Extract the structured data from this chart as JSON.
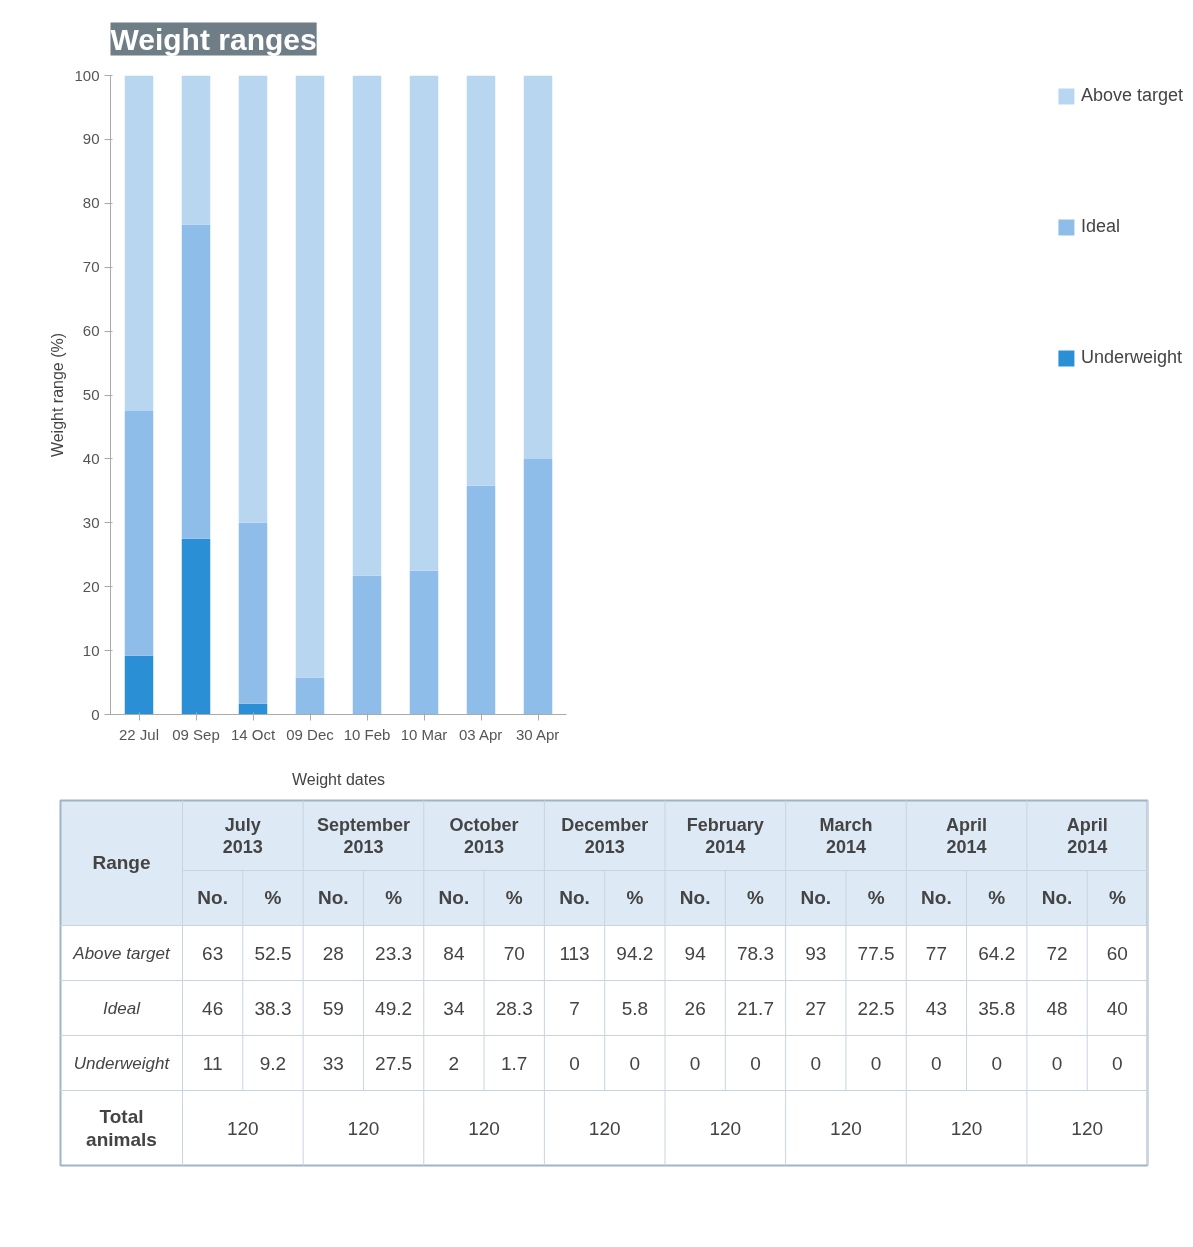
{
  "chart_data": [
    {
      "type": "bar",
      "title": "Weight ranges",
      "xlabel": "Weight dates",
      "ylabel": "Weight range (%)",
      "categories": [
        "22 Jul",
        "09 Sep",
        "14 Oct",
        "09 Dec",
        "10 Feb",
        "10 Mar",
        "03 Apr",
        "30 Apr"
      ],
      "series": [
        {
          "name": "Underweight",
          "color": "#2b8fd6",
          "values": [
            9.2,
            27.5,
            1.7,
            0,
            0,
            0,
            0,
            0
          ]
        },
        {
          "name": "Ideal",
          "color": "#8fbde9",
          "values": [
            38.3,
            49.2,
            28.3,
            5.8,
            21.7,
            22.5,
            35.8,
            40
          ]
        },
        {
          "name": "Above target",
          "color": "#b9d6f1",
          "values": [
            52.5,
            23.3,
            70,
            94.2,
            78.3,
            77.5,
            64.2,
            60
          ]
        }
      ],
      "stacked": true,
      "ylim": [
        0,
        100
      ],
      "yticks": [
        0,
        10,
        20,
        30,
        40,
        50,
        60,
        70,
        80,
        90,
        100
      ],
      "legend": "right"
    },
    {
      "type": "other",
      "data_labels": true,
      "categories": [
        "July 2013",
        "September 2013",
        "October 2013",
        "December 2013",
        "February 2014",
        "March 2014",
        "April 2014",
        "April 2014"
      ],
      "series": [
        {
          "name": "Above target",
          "values": [
            63,
            28,
            84,
            113,
            94,
            93,
            77,
            72
          ]
        },
        {
          "values": [
            52.5,
            23.3,
            70,
            94.2,
            78.3,
            77.5,
            64.2,
            60
          ]
        },
        {
          "name": "Ideal",
          "values": [
            46,
            59,
            34,
            7,
            26,
            27,
            43,
            48
          ]
        },
        {
          "values": [
            38.3,
            49.2,
            28.3,
            5.8,
            21.7,
            22.5,
            35.8,
            40
          ]
        },
        {
          "name": "Underweight",
          "values": [
            11,
            33,
            2,
            0,
            0,
            0,
            0,
            0
          ]
        },
        {
          "values": [
            9.2,
            27.5,
            1.7,
            0,
            0,
            0,
            0,
            0
          ]
        }
      ],
      "totals": [
        "120",
        "120",
        "120",
        "120",
        "120",
        "120",
        "120",
        "120"
      ],
      "annotations": [
        "Range",
        "No.",
        "%",
        "Total animals"
      ]
    }
  ]
}
